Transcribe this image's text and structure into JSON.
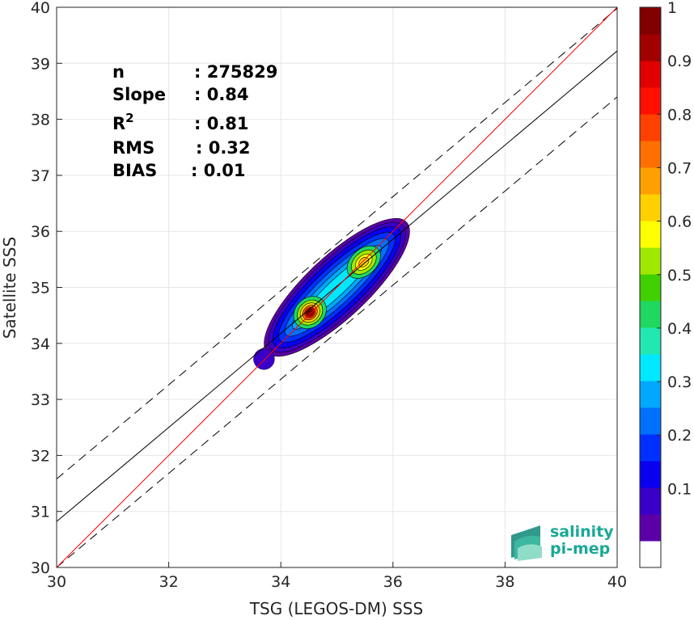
{
  "chart_data": {
    "type": "scatter",
    "xlabel": "TSG (LEGOS-DM) SSS",
    "ylabel": "Satellite SSS",
    "xlim": [
      30,
      40
    ],
    "ylim": [
      30,
      40
    ],
    "xticks": [
      30,
      32,
      34,
      36,
      38,
      40
    ],
    "yticks": [
      30,
      31,
      32,
      33,
      34,
      35,
      36,
      37,
      38,
      39,
      40
    ],
    "grid": true,
    "stats": [
      {
        "label": "n",
        "value": ": 275829"
      },
      {
        "label": "Slope",
        "value": ": 0.84"
      },
      {
        "label": "R",
        "sup": "2",
        "value": ": 0.81"
      },
      {
        "label": "RMS",
        "value": ": 0.32"
      },
      {
        "label": "BIAS",
        "value": ": 0.01"
      }
    ],
    "lines": {
      "identity": {
        "slope": 1,
        "intercept": 0,
        "color": "#ff0000"
      },
      "regression": {
        "slope": 0.84,
        "intercept": 5.62,
        "color": "#000000"
      },
      "upper_bound": {
        "slope": 0.84,
        "intercept": 6.38,
        "dashed": true
      },
      "lower_bound": {
        "slope": 0.84,
        "intercept": 4.8,
        "dashed": true
      }
    },
    "density_peaks": [
      {
        "x": 34.52,
        "y": 34.55,
        "level": 1.0
      },
      {
        "x": 35.48,
        "y": 35.45,
        "level": 0.7
      }
    ],
    "outlier": {
      "x": 33.7,
      "y": 33.72,
      "level": 0.1
    },
    "colorbar": {
      "ticks": [
        0.1,
        0.2,
        0.3,
        0.4,
        0.5,
        0.6,
        0.7,
        0.8,
        0.9,
        1
      ],
      "tick_labels": [
        "0.1",
        "0.2",
        "0.3",
        "0.4",
        "0.5",
        "0.6",
        "0.7",
        "0.8",
        "0.9",
        "1"
      ],
      "colors": [
        "#ffffff",
        "#5b00a8",
        "#3a00c8",
        "#0a00f0",
        "#0030ff",
        "#0070ff",
        "#00a8ff",
        "#00e8ff",
        "#20e8b0",
        "#20d860",
        "#40d000",
        "#a0e800",
        "#ffff00",
        "#ffd000",
        "#ffa000",
        "#ff7000",
        "#ff4000",
        "#ff1000",
        "#e00000",
        "#a00000",
        "#800000"
      ]
    }
  },
  "logo": {
    "line1": "salinity",
    "line2": "pi-mep"
  }
}
